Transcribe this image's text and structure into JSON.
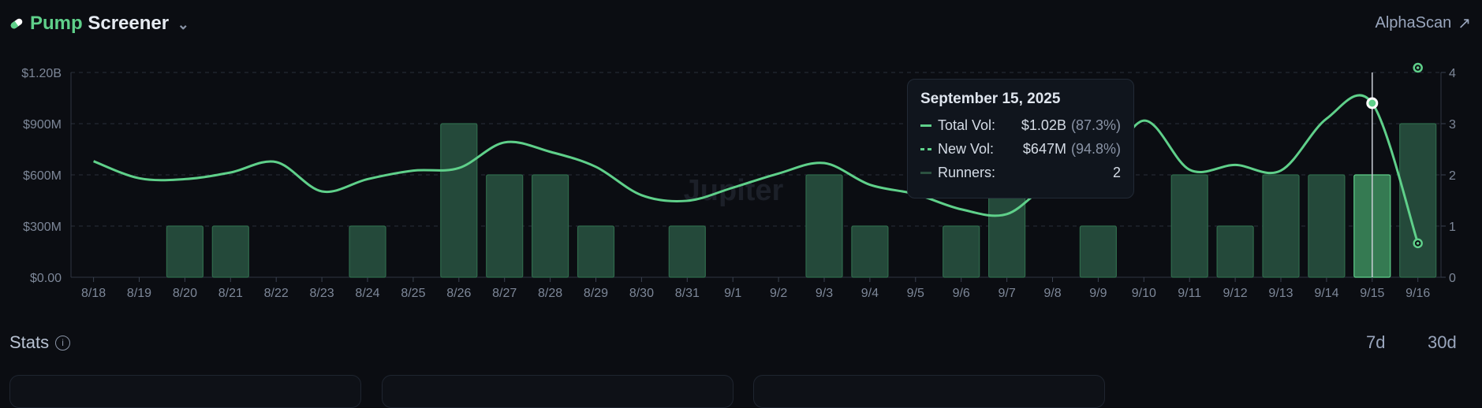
{
  "header": {
    "title_accent": "Pump",
    "title_rest": "Screener",
    "icon": "pill-icon",
    "link": "AlphaScan"
  },
  "colors": {
    "accent": "#5fd08a",
    "bar": "#24493a",
    "bar_border": "#2f6a4b",
    "bar_active": "#357a52",
    "background": "#0b0d12"
  },
  "watermark": "Jupiter",
  "chart_data": {
    "type": "bar+line",
    "categories": [
      "8/18",
      "8/19",
      "8/20",
      "8/21",
      "8/22",
      "8/23",
      "8/24",
      "8/25",
      "8/26",
      "8/27",
      "8/28",
      "8/29",
      "8/30",
      "8/31",
      "9/1",
      "9/2",
      "9/3",
      "9/4",
      "9/5",
      "9/6",
      "9/7",
      "9/8",
      "9/9",
      "9/10",
      "9/11",
      "9/12",
      "9/13",
      "9/14",
      "9/15",
      "9/16"
    ],
    "series": [
      {
        "name": "Total Vol",
        "type": "line",
        "axis": "left",
        "values": [
          680,
          580,
          575,
          614,
          675,
          503,
          575,
          625,
          640,
          790,
          735,
          647,
          481,
          448,
          525,
          608,
          669,
          542,
          487,
          398,
          370,
          558,
          586,
          918,
          630,
          658,
          625,
          929,
          1020,
          199
        ]
      },
      {
        "name": "Runners",
        "type": "bar",
        "axis": "right",
        "values": [
          0,
          0,
          1,
          1,
          0,
          0,
          1,
          0,
          3,
          2,
          2,
          1,
          0,
          1,
          0,
          0,
          2,
          1,
          0,
          1,
          2,
          0,
          1,
          0,
          2,
          1,
          2,
          2,
          2,
          3
        ]
      }
    ],
    "left_axis": {
      "ticks": [
        "$0.00",
        "$300M",
        "$600M",
        "$900M",
        "$1.20B"
      ],
      "range_millions": [
        0,
        1200
      ]
    },
    "right_axis": {
      "ticks": [
        "0",
        "1",
        "2",
        "3",
        "4"
      ],
      "range": [
        0,
        4
      ]
    },
    "grid": "dashed horizontal",
    "hovered_index": 28
  },
  "tooltip": {
    "date": "September 15, 2025",
    "rows": [
      {
        "label": "Total Vol:",
        "value": "$1.02B",
        "pct": "(87.3%)"
      },
      {
        "label": "New Vol:",
        "value": "$647M",
        "pct": "(94.8%)"
      },
      {
        "label": "Runners:",
        "value": "2",
        "pct": ""
      }
    ]
  },
  "stats": {
    "title": "Stats",
    "ranges": [
      "7d",
      "30d"
    ]
  }
}
